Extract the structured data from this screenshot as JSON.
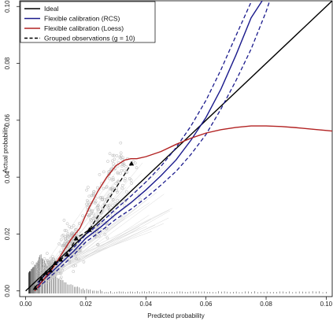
{
  "chart_data": {
    "type": "line",
    "xlabel": "Predicted probability",
    "ylabel": "Actual probability",
    "xlim": [
      -0.002,
      0.102
    ],
    "ylim": [
      -0.002,
      0.102
    ],
    "x_ticks": [
      "0.00",
      "0.02",
      "0.04",
      "0.06",
      "0.08",
      "0.10"
    ],
    "y_ticks": [
      "0.00",
      "0.02",
      "0.04",
      "0.06",
      "0.08",
      "0.10"
    ],
    "legend_position": "top-left",
    "legend": [
      {
        "label": "Ideal",
        "color": "#000000",
        "style": "solid"
      },
      {
        "label": "Flexible calibration (RCS)",
        "color": "#1a1a8c",
        "style": "solid"
      },
      {
        "label": "Flexible calibration (Loess)",
        "color": "#b22222",
        "style": "solid"
      },
      {
        "label": "Grouped observations (g = 10)",
        "color": "#000000",
        "style": "dashed"
      }
    ],
    "series": [
      {
        "name": "Ideal",
        "color": "#000000",
        "x": [
          0.0,
          0.102
        ],
        "y": [
          0.0,
          0.102
        ]
      },
      {
        "name": "Flexible calibration (RCS)",
        "color": "#1a1a8c",
        "x": [
          0.004,
          0.008,
          0.012,
          0.016,
          0.02,
          0.025,
          0.03,
          0.035,
          0.04,
          0.045,
          0.05,
          0.055,
          0.06,
          0.065,
          0.07,
          0.075,
          0.0787
        ],
        "y": [
          0.002,
          0.006,
          0.01,
          0.014,
          0.0185,
          0.0225,
          0.027,
          0.031,
          0.0355,
          0.0405,
          0.046,
          0.053,
          0.061,
          0.071,
          0.083,
          0.096,
          0.102
        ]
      },
      {
        "name": "RCS upper confidence limit",
        "color": "#1a1a8c",
        "dashed": true,
        "x": [
          0.004,
          0.008,
          0.012,
          0.016,
          0.02,
          0.025,
          0.03,
          0.035,
          0.04,
          0.045,
          0.05,
          0.055,
          0.06,
          0.065,
          0.07,
          0.0752
        ],
        "y": [
          0.003,
          0.0072,
          0.0113,
          0.0153,
          0.0198,
          0.024,
          0.0288,
          0.0333,
          0.0383,
          0.0438,
          0.0503,
          0.058,
          0.067,
          0.0778,
          0.0898,
          0.102
        ]
      },
      {
        "name": "RCS lower confidence limit",
        "color": "#1a1a8c",
        "dashed": true,
        "x": [
          0.004,
          0.008,
          0.012,
          0.016,
          0.02,
          0.025,
          0.03,
          0.035,
          0.04,
          0.045,
          0.05,
          0.055,
          0.06,
          0.065,
          0.07,
          0.075,
          0.08,
          0.0812
        ],
        "y": [
          0.001,
          0.0048,
          0.0087,
          0.0127,
          0.0172,
          0.021,
          0.0252,
          0.0287,
          0.0327,
          0.0372,
          0.042,
          0.048,
          0.055,
          0.064,
          0.074,
          0.085,
          0.0982,
          0.102
        ]
      },
      {
        "name": "Flexible calibration (Loess)",
        "color": "#b22222",
        "x": [
          0.003,
          0.006,
          0.009,
          0.012,
          0.015,
          0.018,
          0.021,
          0.024,
          0.027,
          0.03,
          0.033,
          0.035,
          0.037,
          0.04,
          0.045,
          0.05,
          0.055,
          0.06,
          0.065,
          0.07,
          0.075,
          0.08,
          0.085,
          0.09,
          0.095,
          0.1,
          0.102
        ],
        "y": [
          0.0,
          0.004,
          0.008,
          0.013,
          0.018,
          0.022,
          0.029,
          0.035,
          0.04,
          0.044,
          0.046,
          0.0465,
          0.0465,
          0.0472,
          0.049,
          0.0515,
          0.0537,
          0.0555,
          0.0567,
          0.0575,
          0.058,
          0.058,
          0.0578,
          0.0574,
          0.0569,
          0.0564,
          0.0562
        ]
      },
      {
        "name": "Grouped observations (g = 10)",
        "color": "#000000",
        "dashed": true,
        "markers": "triangle",
        "x": [
          0.0032,
          0.0052,
          0.0067,
          0.0082,
          0.0098,
          0.0116,
          0.0138,
          0.0168,
          0.0212,
          0.0352
        ],
        "y": [
          0.0011,
          0.0043,
          0.0063,
          0.0072,
          0.0098,
          0.011,
          0.0128,
          0.0185,
          0.0215,
          0.0448
        ]
      }
    ],
    "grey_scatter_clusters": [
      {
        "x": 0.008,
        "y": 0.008,
        "spread_x": 0.003,
        "spread_y": 0.003,
        "count": 160
      },
      {
        "x": 0.015,
        "y": 0.016,
        "spread_x": 0.003,
        "spread_y": 0.006,
        "count": 140
      },
      {
        "x": 0.024,
        "y": 0.027,
        "spread_x": 0.004,
        "spread_y": 0.008,
        "count": 120
      },
      {
        "x": 0.031,
        "y": 0.04,
        "spread_x": 0.004,
        "spread_y": 0.01,
        "count": 90
      }
    ],
    "rug": {
      "description": "histogram spikes of predicted probabilities along x-axis",
      "x_from": 0.001,
      "x_to": 0.1,
      "peak_x": 0.005
    }
  }
}
